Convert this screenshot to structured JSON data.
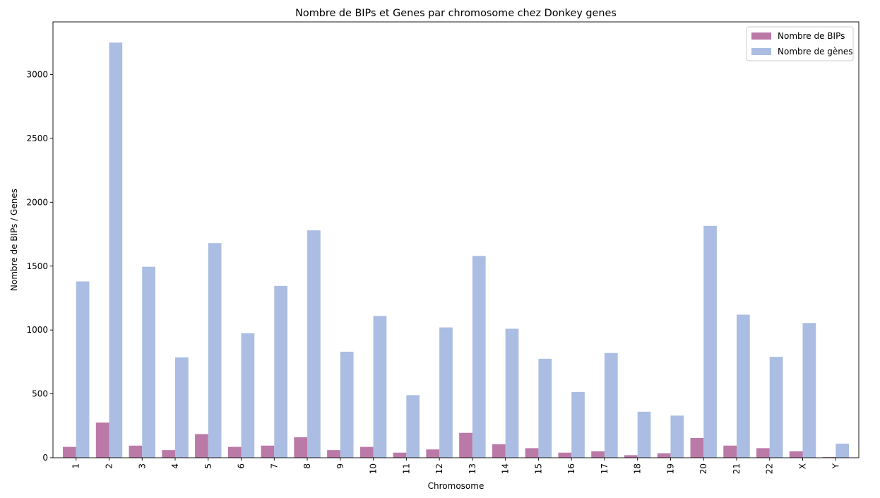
{
  "chart_data": {
    "type": "bar",
    "title": "Nombre de BIPs et Genes par chromosome chez Donkey genes",
    "xlabel": "Chromosome",
    "ylabel": "Nombre de BIPs / Genes",
    "categories": [
      "1",
      "2",
      "3",
      "4",
      "5",
      "6",
      "7",
      "8",
      "9",
      "10",
      "11",
      "12",
      "13",
      "14",
      "15",
      "16",
      "17",
      "18",
      "19",
      "20",
      "21",
      "22",
      "X",
      "Y"
    ],
    "series": [
      {
        "name": "Nombre de BIPs",
        "color": "#bb79a7",
        "values": [
          85,
          275,
          95,
          60,
          185,
          85,
          95,
          160,
          60,
          85,
          40,
          65,
          195,
          105,
          75,
          40,
          50,
          20,
          35,
          155,
          95,
          75,
          50,
          5
        ]
      },
      {
        "name": "Nombre de gènes",
        "color": "#abbde2",
        "values": [
          1380,
          3250,
          1495,
          785,
          1680,
          975,
          1345,
          1780,
          830,
          1110,
          490,
          1020,
          1580,
          1010,
          775,
          515,
          820,
          360,
          330,
          1815,
          1120,
          790,
          1055,
          110
        ]
      }
    ],
    "yticks": [
      0,
      500,
      1000,
      1500,
      2000,
      2500,
      3000
    ],
    "ylim": [
      0,
      3412
    ],
    "legend": "top-right",
    "grid": false
  }
}
